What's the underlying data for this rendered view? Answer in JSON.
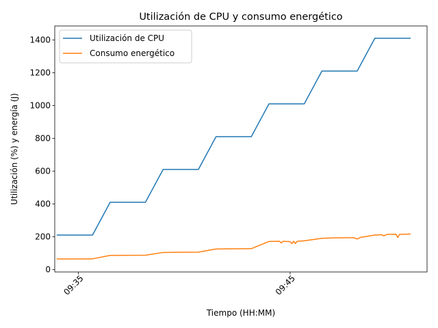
{
  "chart_data": {
    "type": "line",
    "title": "Utilización de CPU y consumo energético",
    "xlabel": "Tiempo (HH:MM)",
    "ylabel": "Utilización (%) y energía (J)",
    "x_tick_labels": [
      "09:35",
      "09:45"
    ],
    "y_ticks": [
      0,
      200,
      400,
      600,
      800,
      1000,
      1200,
      1400
    ],
    "xlim": [
      "09:33:53",
      "09:51:28"
    ],
    "ylim": [
      -15,
      1485
    ],
    "grid": false,
    "legend_position": "top-left",
    "series": [
      {
        "name": "Utilización de CPU",
        "color": "#1f77b4",
        "points": [
          [
            "09:34:00",
            210
          ],
          [
            "09:35:40",
            210
          ],
          [
            "09:36:30",
            410
          ],
          [
            "09:38:10",
            410
          ],
          [
            "09:39:00",
            610
          ],
          [
            "09:40:40",
            610
          ],
          [
            "09:41:30",
            810
          ],
          [
            "09:43:10",
            810
          ],
          [
            "09:44:00",
            1010
          ],
          [
            "09:45:40",
            1010
          ],
          [
            "09:46:30",
            1210
          ],
          [
            "09:48:10",
            1210
          ],
          [
            "09:49:00",
            1410
          ],
          [
            "09:50:40",
            1410
          ]
        ]
      },
      {
        "name": "Consumo energético",
        "color": "#ff7f0e",
        "points": [
          [
            "09:34:00",
            64
          ],
          [
            "09:35:40",
            65
          ],
          [
            "09:36:30",
            86
          ],
          [
            "09:38:10",
            87
          ],
          [
            "09:39:00",
            104
          ],
          [
            "09:40:40",
            106
          ],
          [
            "09:41:30",
            125
          ],
          [
            "09:43:10",
            127
          ],
          [
            "09:44:00",
            171
          ],
          [
            "09:44:30",
            172
          ],
          [
            "09:44:35",
            162
          ],
          [
            "09:44:40",
            172
          ],
          [
            "09:45:00",
            170
          ],
          [
            "09:45:05",
            158
          ],
          [
            "09:45:10",
            172
          ],
          [
            "09:45:15",
            158
          ],
          [
            "09:45:20",
            172
          ],
          [
            "09:45:40",
            175
          ],
          [
            "09:46:30",
            190
          ],
          [
            "09:47:00",
            193
          ],
          [
            "09:48:00",
            194
          ],
          [
            "09:48:10",
            186
          ],
          [
            "09:48:20",
            196
          ],
          [
            "09:49:00",
            210
          ],
          [
            "09:49:20",
            212
          ],
          [
            "09:49:25",
            205
          ],
          [
            "09:49:35",
            214
          ],
          [
            "09:50:00",
            215
          ],
          [
            "09:50:05",
            195
          ],
          [
            "09:50:10",
            214
          ],
          [
            "09:50:40",
            216
          ]
        ]
      }
    ]
  }
}
